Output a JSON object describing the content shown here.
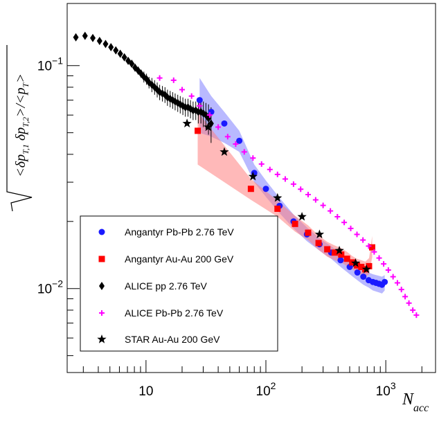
{
  "chart_data": {
    "type": "scatter",
    "x_scale": "log",
    "y_scale": "log",
    "xlim": [
      2.2,
      2600
    ],
    "ylim": [
      0.0042,
      0.19
    ],
    "xlabel": {
      "base": "N",
      "subscript": "acc"
    },
    "ylabel": {
      "text": "sqrt(<δp_T,1 δp_T,2>)/<p_T>"
    },
    "x_ticks": [
      {
        "value": 10,
        "label": "10",
        "exp": ""
      },
      {
        "value": 100,
        "label": "10",
        "exp": "2"
      },
      {
        "value": 1000,
        "label": "10",
        "exp": "3"
      }
    ],
    "y_ticks": [
      {
        "value": 0.01,
        "label": "10",
        "exp": "−2"
      },
      {
        "value": 0.1,
        "label": "10",
        "exp": "−1"
      }
    ],
    "legend_position": "bottom-left",
    "series": [
      {
        "name": "Angantyr Pb-Pb 2.76 TeV",
        "marker": "circle",
        "color": "#1a1aff",
        "band_color": "#8080ff",
        "x": [
          28,
          35,
          45,
          60,
          80,
          100,
          130,
          170,
          220,
          280,
          350,
          420,
          500,
          580,
          650,
          720,
          780,
          830,
          880,
          930,
          980
        ],
        "y": [
          0.07,
          0.062,
          0.055,
          0.046,
          0.033,
          0.028,
          0.0235,
          0.02,
          0.0175,
          0.0158,
          0.0145,
          0.0134,
          0.0125,
          0.0118,
          0.0113,
          0.0109,
          0.0107,
          0.0106,
          0.0105,
          0.0104,
          0.0107
        ],
        "band_upper": [
          0.088,
          0.073,
          0.062,
          0.051,
          0.036,
          0.0305,
          0.0255,
          0.0215,
          0.0188,
          0.0168,
          0.0155,
          0.0144,
          0.0135,
          0.0127,
          0.0122,
          0.0118,
          0.0116,
          0.0115,
          0.0114,
          0.0113,
          0.0115
        ],
        "band_lower": [
          0.05,
          0.048,
          0.045,
          0.041,
          0.03,
          0.0258,
          0.0218,
          0.0186,
          0.0163,
          0.0148,
          0.0136,
          0.0125,
          0.0116,
          0.0109,
          0.0104,
          0.0101,
          0.0098,
          0.0097,
          0.0096,
          0.0095,
          0.0098
        ]
      },
      {
        "name": "Angantyr Au-Au 200 GeV",
        "marker": "square",
        "color": "#ff0000",
        "band_color": "#ff8080",
        "x": [
          27,
          75,
          125,
          175,
          225,
          275,
          325,
          375,
          425,
          475,
          525,
          575,
          625,
          675,
          725,
          770
        ],
        "y": [
          0.051,
          0.028,
          0.0228,
          0.0195,
          0.0178,
          0.016,
          0.015,
          0.0145,
          0.0142,
          0.0136,
          0.0131,
          0.0127,
          0.0125,
          0.0122,
          0.0126,
          0.0153
        ],
        "band_upper": [
          0.062,
          0.031,
          0.0248,
          0.0212,
          0.0192,
          0.0173,
          0.0162,
          0.0156,
          0.0152,
          0.0146,
          0.014,
          0.0136,
          0.0134,
          0.0132,
          0.0137,
          0.0172
        ],
        "band_lower": [
          0.036,
          0.025,
          0.021,
          0.018,
          0.0165,
          0.0149,
          0.0139,
          0.0134,
          0.0131,
          0.0126,
          0.0122,
          0.0118,
          0.0116,
          0.0113,
          0.0116,
          0.0138
        ]
      },
      {
        "name": "ALICE pp 2.76 TeV",
        "marker": "diamond",
        "color": "#000000",
        "x": [
          2.6,
          3.1,
          3.6,
          4.1,
          4.6,
          5.1,
          5.6,
          6.1,
          6.6,
          7.1,
          7.6,
          8.1,
          8.6,
          9.1,
          9.6,
          10.1,
          10.6,
          11.2,
          11.8,
          12.4,
          13.0,
          13.7,
          14.4,
          15.1,
          15.9,
          16.7,
          17.5,
          18.4,
          19.3,
          20.3,
          21.3,
          22.4,
          23.5,
          24.7,
          26.0,
          27.3,
          28.7,
          30.1,
          31.6,
          33.2,
          34.9
        ],
        "y": [
          0.134,
          0.136,
          0.133,
          0.129,
          0.125,
          0.121,
          0.117,
          0.113,
          0.109,
          0.105,
          0.102,
          0.098,
          0.095,
          0.092,
          0.089,
          0.087,
          0.084,
          0.082,
          0.08,
          0.078,
          0.076,
          0.075,
          0.074,
          0.072,
          0.071,
          0.07,
          0.069,
          0.068,
          0.067,
          0.066,
          0.065,
          0.065,
          0.064,
          0.063,
          0.063,
          0.062,
          0.062,
          0.061,
          0.06,
          0.058,
          0.055
        ],
        "err": [
          0.002,
          0.002,
          0.002,
          0.002,
          0.002,
          0.002,
          0.003,
          0.003,
          0.003,
          0.003,
          0.003,
          0.004,
          0.004,
          0.004,
          0.005,
          0.005,
          0.005,
          0.006,
          0.006,
          0.006,
          0.006,
          0.006,
          0.006,
          0.006,
          0.006,
          0.006,
          0.006,
          0.006,
          0.006,
          0.006,
          0.006,
          0.006,
          0.006,
          0.006,
          0.006,
          0.007,
          0.007,
          0.008,
          0.008,
          0.009,
          0.01
        ]
      },
      {
        "name": "ALICE Pb-Pb 2.76 TeV",
        "marker": "plus",
        "color": "#ff00ff",
        "x": [
          13,
          17,
          20,
          24,
          28,
          34,
          40,
          48,
          56,
          66,
          78,
          92,
          108,
          125,
          145,
          170,
          195,
          225,
          260,
          300,
          345,
          395,
          450,
          510,
          575,
          645,
          720,
          800,
          880,
          960,
          1050,
          1150,
          1250,
          1350,
          1450,
          1560,
          1680,
          1800
        ],
        "y": [
          0.088,
          0.086,
          0.078,
          0.073,
          0.066,
          0.06,
          0.053,
          0.048,
          0.0445,
          0.041,
          0.0385,
          0.0362,
          0.0342,
          0.0325,
          0.031,
          0.0294,
          0.0279,
          0.0264,
          0.025,
          0.0236,
          0.0223,
          0.021,
          0.0198,
          0.0186,
          0.0175,
          0.0165,
          0.0155,
          0.0146,
          0.0137,
          0.0129,
          0.0121,
          0.0113,
          0.0106,
          0.0099,
          0.0092,
          0.0086,
          0.008,
          0.0076
        ]
      },
      {
        "name": "STAR Au-Au 200 GeV",
        "marker": "star",
        "color": "#000000",
        "x": [
          22,
          33,
          45,
          78,
          125,
          200,
          280,
          410,
          560,
          690
        ],
        "y": [
          0.055,
          0.053,
          0.041,
          0.0318,
          0.0255,
          0.021,
          0.0175,
          0.0148,
          0.013,
          0.0122
        ]
      }
    ]
  }
}
